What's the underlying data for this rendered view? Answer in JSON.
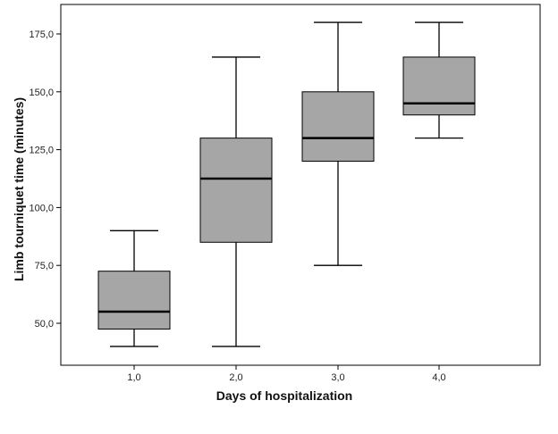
{
  "chart_data": {
    "type": "boxplot",
    "xlabel": "Days of hospitalization",
    "ylabel": "Limb tourniquet time (minutes)",
    "categories": [
      "1,0",
      "2,0",
      "3,0",
      "4,0"
    ],
    "yticks": [
      "50,0",
      "75,0",
      "100,0",
      "125,0",
      "150,0",
      "175,0"
    ],
    "ytick_values": [
      50,
      75,
      100,
      125,
      150,
      175
    ],
    "ylim": [
      35,
      190
    ],
    "boxes": [
      {
        "category": "1,0",
        "min": 40,
        "q1": 47.5,
        "median": 55,
        "q3": 72.5,
        "max": 90
      },
      {
        "category": "2,0",
        "min": 40,
        "q1": 85,
        "median": 112.5,
        "q3": 130,
        "max": 165
      },
      {
        "category": "3,0",
        "min": 75,
        "q1": 120,
        "median": 130,
        "q3": 150,
        "max": 180
      },
      {
        "category": "4,0",
        "min": 130,
        "q1": 140,
        "median": 145,
        "q3": 165,
        "max": 180
      }
    ],
    "box_color": "#a6a6a6",
    "grid": false
  }
}
